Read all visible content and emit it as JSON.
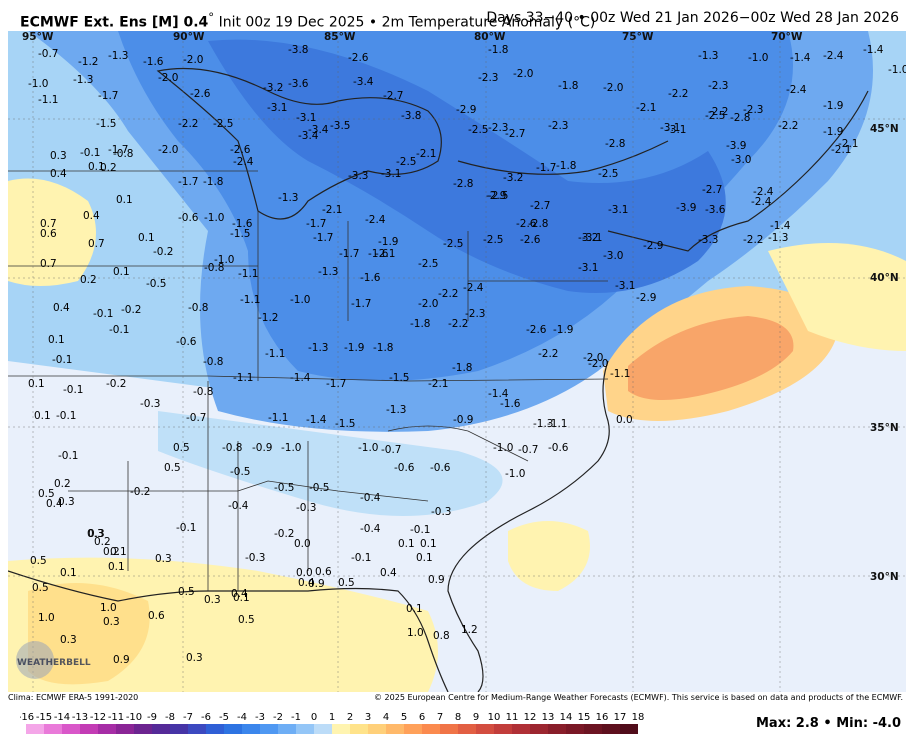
{
  "header": {
    "model": "ECMWF Ext. Ens [M] 0.4",
    "init": "Init 00z 19 Dec 2025",
    "field": "2m Temperature Anomaly (°C)",
    "valid": "Days 33−40 • 00z Wed 21 Jan 2026−00z Wed 28 Jan 2026"
  },
  "map": {
    "lon_labels": [
      "95°W",
      "90°W",
      "85°W",
      "80°W",
      "75°W",
      "70°W"
    ],
    "lat_labels": [
      "45°N",
      "40°N",
      "35°N",
      "30°N"
    ],
    "values": [
      "-0.7",
      "-1.2",
      "-1.3",
      "-1.6",
      "-2.0",
      "-3.8",
      "-2.6",
      "-1.8",
      "-1.3",
      "-1.0",
      "-1.4",
      "-2.4",
      "-1.4",
      "-1.0",
      "-1.0",
      "-1.3",
      "-2.0",
      "-3.2",
      "-3.6",
      "-3.4",
      "-2.3",
      "-2.0",
      "-1.8",
      "-2.0",
      "-2.3",
      "-2.4",
      "-1.1",
      "-1.7",
      "-2.6",
      "-3.1",
      "-3.1",
      "-2.7",
      "-2.9",
      "-2.2",
      "-2.1",
      "-2.2",
      "-2.3",
      "-1.9",
      "-1.5",
      "-2.2",
      "-2.5",
      "-3.4",
      "-3.5",
      "-3.8",
      "-2.5",
      "-2.3",
      "-2.3",
      "-2.5",
      "-2.8",
      "-2.2",
      "-1.9",
      "-1.7",
      "-2.0",
      "-2.6",
      "-3.4",
      "-2.1",
      "-2.7",
      "-2.8",
      "-3.1",
      "-3.9",
      "-3.0",
      "-2.1",
      "0.3",
      "-0.1",
      "-0.8",
      "-2.4",
      "-2.5",
      "-3.1",
      "-2.9",
      "-1.7",
      "-1.8",
      "-2.5",
      "-3.1",
      "-2.7",
      "-2.4",
      "-2.1",
      "0.4",
      "0.1",
      "0.2",
      "-1.7",
      "-1.8",
      "-3.3",
      "-2.8",
      "-3.2",
      "-2.5",
      "-2.7",
      "-3.1",
      "-3.9",
      "-3.6",
      "-2.4",
      "-1.4",
      "0.1",
      "-1.3",
      "-1.7",
      "-2.1",
      "-2.4",
      "-2.6",
      "-2.8",
      "-3.2",
      "-2.9",
      "-3.3",
      "-2.2",
      "-1.3",
      "0.7",
      "0.4",
      "-0.6",
      "-1.0",
      "-1.6",
      "-1.5",
      "-1.7",
      "-1.6",
      "-1.9",
      "-2.5",
      "-2.5",
      "-2.6",
      "-3.1",
      "-3.0",
      "0.6",
      "0.7",
      "0.1",
      "-0.2",
      "-0.8",
      "-1.0",
      "-1.7",
      "-2.1",
      "-2.5",
      "-3.1",
      "-3.1",
      "0.7",
      "0.1",
      "-1.1",
      "-1.3",
      "-1.6",
      "-2.2",
      "-2.4",
      "-2.9",
      "0.2",
      "-0.5",
      "-1.1",
      "-1.0",
      "-1.7",
      "-2.0",
      "-2.3",
      "-2.6",
      "0.4",
      "-0.1",
      "-0.2",
      "-0.8",
      "-1.2",
      "-1.8",
      "-2.2",
      "-1.9",
      "0.1",
      "-0.1",
      "-0.6",
      "-1.1",
      "-1.3",
      "-1.9",
      "-1.8",
      "-2.2",
      "-2.0",
      "-0.1",
      "-0.8",
      "-1.1",
      "-1.4",
      "-1.7",
      "-1.5",
      "-2.1",
      "-1.8",
      "-2.0",
      "-1.1",
      "0.1",
      "-0.1",
      "-0.2",
      "-0.3",
      "-0.8",
      "-1.3",
      "-1.4",
      "-1.6",
      "0.1",
      "-0.1",
      "-0.7",
      "-1.1",
      "-1.4",
      "-1.5",
      "-0.9",
      "-1.3",
      "-1.1",
      "0.0",
      "-0.1",
      "0.5",
      "-0.8",
      "-0.9",
      "-1.0",
      "-1.0",
      "-0.7",
      "-1.0",
      "-0.7",
      "-0.6",
      "0.2",
      "0.5",
      "-0.5",
      "-0.6",
      "-0.6",
      "-1.0",
      "0.5",
      "0.3",
      "-0.2",
      "-0.4",
      "-0.5",
      "-0.5",
      "-0.3",
      "-0.4",
      "0.4",
      "0.3",
      "-0.1",
      "-0.2",
      "-0.4",
      "-0.1",
      "-0.3",
      "0.3",
      "0.2",
      "0.1",
      "0.0",
      "0.1",
      "0.1",
      "0.2",
      "0.1",
      "0.3",
      "-0.3",
      "-0.1",
      "0.1",
      "0.5",
      "0.1",
      "0.6",
      "0.0",
      "0.4",
      "0.9",
      "0.5",
      "0.5",
      "0.3",
      "0.1",
      "0.4",
      "0.5",
      "0.9",
      "1.0",
      "1.0",
      "0.6",
      "0.4",
      "0.1",
      "1.2",
      "0.3",
      "0.3",
      "0.5",
      "1.0",
      "0.9",
      "0.3",
      "0.8"
    ]
  },
  "footer": {
    "left": "Clima: ECMWF ERA-5 1991-2020",
    "right": "© 2025 European Centre for Medium-Range Weather Forecasts (ECMWF). This service is based on data and products of the ECMWF."
  },
  "colorbar": {
    "labels": [
      "-16",
      "-15",
      "-14",
      "-13",
      "-12",
      "-11",
      "-10",
      "-9",
      "-8",
      "-7",
      "-6",
      "-5",
      "-4",
      "-3",
      "-2",
      "-1",
      "0",
      "1",
      "2",
      "3",
      "4",
      "5",
      "6",
      "7",
      "8",
      "9",
      "10",
      "11",
      "12",
      "13",
      "14",
      "15",
      "16",
      "17",
      "18"
    ],
    "colors": [
      "#f4a6e8",
      "#e97ad9",
      "#d957c9",
      "#c33cb5",
      "#a62da6",
      "#8a2596",
      "#6c2490",
      "#552a98",
      "#4634a6",
      "#3c49c0",
      "#2f5fd6",
      "#2d73e2",
      "#3b86ec",
      "#4f98f2",
      "#6eaef5",
      "#94c6f7",
      "#bcdcf8",
      "#fff4b0",
      "#ffe38a",
      "#ffd07a",
      "#ffb96a",
      "#ffa15a",
      "#fb8a4e",
      "#f07447",
      "#e25f43",
      "#d34d40",
      "#c23d3b",
      "#b03036",
      "#9c2630",
      "#891e2a",
      "#7a1826",
      "#6c1422",
      "#5e101e",
      "#500c1a"
    ]
  },
  "stats": {
    "max": "2.8",
    "min": "-4.0",
    "text": "Max: 2.8 • Min: -4.0"
  },
  "logo": {
    "text": "WEATHERBELL"
  }
}
